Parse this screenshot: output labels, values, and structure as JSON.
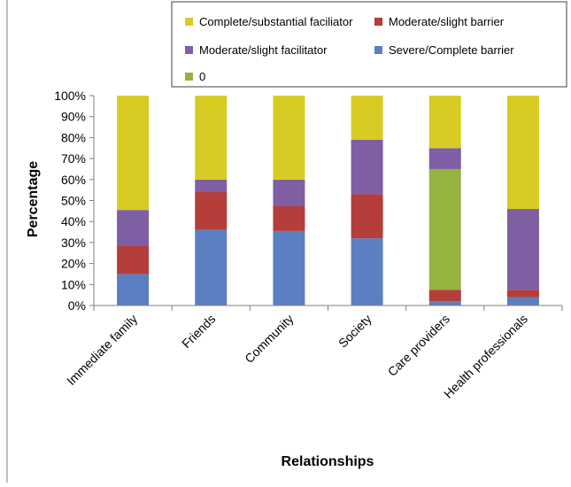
{
  "chart_data": {
    "type": "bar",
    "stacked": true,
    "percent": true,
    "categories": [
      "Immediate family",
      "Friends",
      "Community",
      "Society",
      "Care providers",
      "Health professionals"
    ],
    "series": [
      {
        "name": "Severe/Complete barrier",
        "color": "#5b7fc2",
        "values": [
          15,
          36,
          35.5,
          32,
          2,
          4
        ]
      },
      {
        "name": "Moderate/slight barrier",
        "color": "#b53d3a",
        "values": [
          13.5,
          18,
          12,
          21,
          5.5,
          3.5
        ]
      },
      {
        "name": "0",
        "color": "#95b33f",
        "values": [
          0,
          0,
          0,
          0,
          57.5,
          0
        ]
      },
      {
        "name": "Moderate/slight facilitator",
        "color": "#7f5fa3",
        "values": [
          17,
          6,
          12.5,
          26,
          10,
          38.5
        ]
      },
      {
        "name": "Complete/substantial faciliator",
        "color": "#d8cc24",
        "values": [
          54.5,
          40,
          40,
          21,
          25,
          54
        ]
      }
    ],
    "legend_order": [
      "Complete/substantial faciliator",
      "Moderate/slight barrier",
      "Moderate/slight facilitator",
      "Severe/Complete barrier",
      "0"
    ],
    "ylim": [
      0,
      100
    ],
    "yticks": [
      "0%",
      "10%",
      "20%",
      "30%",
      "40%",
      "50%",
      "60%",
      "70%",
      "80%",
      "90%",
      "100%"
    ],
    "xlabel": "Relationships",
    "ylabel": "Percentage",
    "legend_position": "top-right",
    "grid": false
  }
}
